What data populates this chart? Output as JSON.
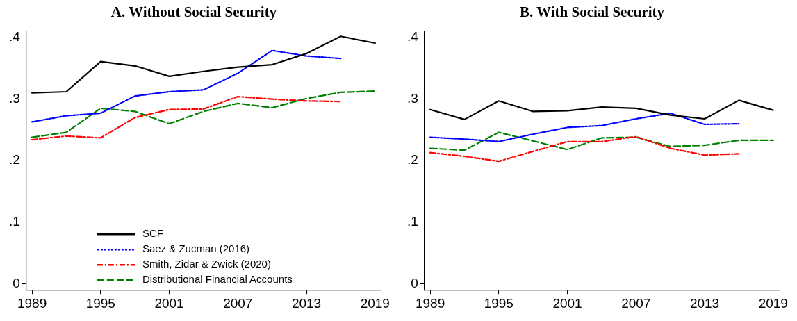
{
  "chart_data": [
    {
      "type": "line",
      "title": "A. Without Social Security",
      "x": [
        1989,
        1992,
        1995,
        1998,
        2001,
        2004,
        2007,
        2010,
        2013,
        2016,
        2019
      ],
      "xlim": [
        1988.5,
        2019.5
      ],
      "xticks": [
        1989,
        1995,
        2001,
        2007,
        2013,
        2019
      ],
      "ylim": [
        -0.01,
        0.41
      ],
      "yticks": [
        0,
        {
          "value": 0.1,
          "label": ".1"
        },
        {
          "value": 0.2,
          "label": ".2"
        },
        {
          "value": 0.3,
          "label": ".3"
        },
        {
          "value": 0.4,
          "label": ".4"
        }
      ],
      "grid": false,
      "legend": "bottom",
      "series": [
        {
          "name": "SCF",
          "color": "#000000",
          "line_style": "solid",
          "values": [
            0.31,
            0.312,
            0.361,
            0.354,
            0.337,
            0.345,
            0.352,
            0.356,
            0.374,
            0.402,
            0.391
          ]
        },
        {
          "name": "Saez & Zucman (2016)",
          "color": "#0000ff",
          "line_style": "dotted",
          "values": [
            0.263,
            0.273,
            0.277,
            0.305,
            0.312,
            0.315,
            0.342,
            0.379,
            0.37,
            0.366,
            null
          ]
        },
        {
          "name": "Smith, Zidar & Zwick (2020)",
          "color": "#ff0000",
          "line_style": "dashdot",
          "values": [
            0.234,
            0.24,
            0.237,
            0.27,
            0.283,
            0.284,
            0.304,
            0.3,
            0.297,
            0.296,
            null
          ]
        },
        {
          "name": "Distributional Financial Accounts",
          "color": "#008000",
          "line_style": "dashed",
          "values": [
            0.238,
            0.246,
            0.285,
            0.28,
            0.26,
            0.28,
            0.293,
            0.286,
            0.301,
            0.311,
            0.313
          ]
        }
      ]
    },
    {
      "type": "line",
      "title": "B. With Social Security",
      "x": [
        1989,
        1992,
        1995,
        1998,
        2001,
        2004,
        2007,
        2010,
        2013,
        2016,
        2019
      ],
      "xlim": [
        1988.5,
        2019.5
      ],
      "xticks": [
        1989,
        1995,
        2001,
        2007,
        2013,
        2019
      ],
      "ylim": [
        -0.01,
        0.41
      ],
      "yticks": [
        0,
        {
          "value": 0.1,
          "label": ".1"
        },
        {
          "value": 0.2,
          "label": ".2"
        },
        {
          "value": 0.3,
          "label": ".3"
        },
        {
          "value": 0.4,
          "label": ".4"
        }
      ],
      "grid": false,
      "series": [
        {
          "color": "#000000",
          "line_style": "solid",
          "values": [
            0.283,
            0.267,
            0.297,
            0.28,
            0.281,
            0.287,
            0.285,
            0.274,
            0.268,
            0.298,
            0.282
          ]
        },
        {
          "color": "#0000ff",
          "line_style": "dotted",
          "values": [
            0.238,
            0.235,
            0.231,
            0.243,
            0.254,
            0.257,
            0.268,
            0.277,
            0.259,
            0.26,
            null
          ]
        },
        {
          "color": "#ff0000",
          "line_style": "dashdot",
          "values": [
            0.213,
            0.207,
            0.199,
            0.215,
            0.231,
            0.231,
            0.239,
            0.22,
            0.209,
            0.211,
            null
          ]
        },
        {
          "color": "#008000",
          "line_style": "dashed",
          "values": [
            0.22,
            0.217,
            0.246,
            0.232,
            0.218,
            0.237,
            0.238,
            0.223,
            0.225,
            0.233,
            0.233
          ]
        }
      ]
    }
  ]
}
